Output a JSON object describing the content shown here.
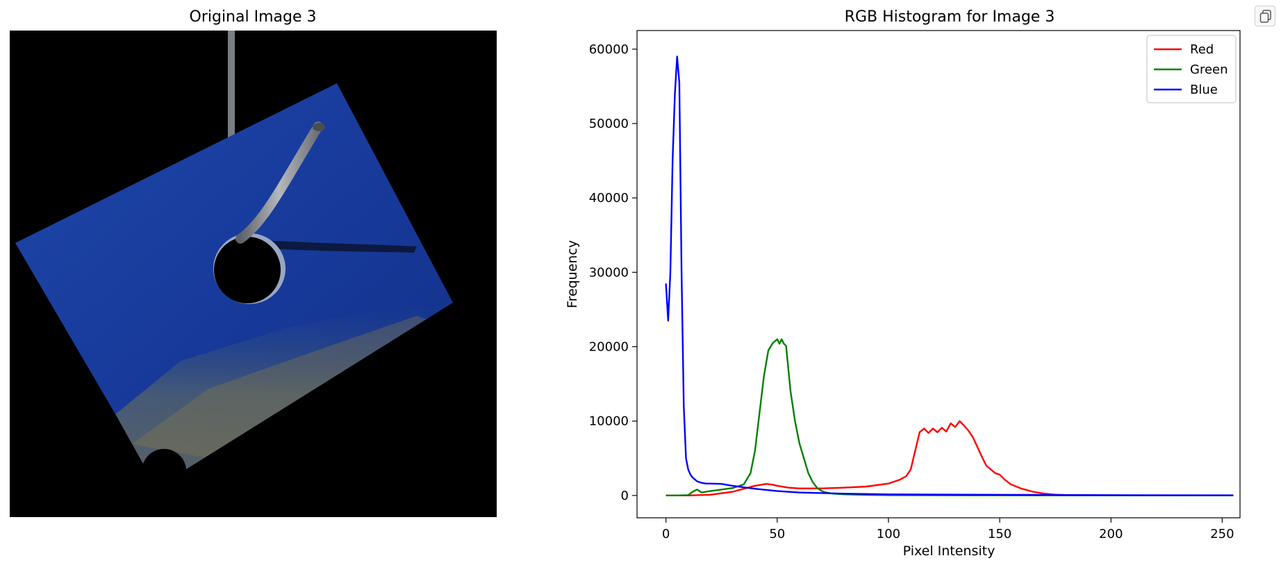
{
  "image_panel": {
    "title": "Original Image 3"
  },
  "chart_data": {
    "type": "line",
    "title": "RGB Histogram for Image 3",
    "xlabel": "Pixel Intensity",
    "ylabel": "Frequency",
    "xlim": [
      -13,
      258
    ],
    "ylim": [
      -3000,
      62500
    ],
    "xticks": [
      0,
      50,
      100,
      150,
      200,
      250
    ],
    "yticks": [
      0,
      10000,
      20000,
      30000,
      40000,
      50000,
      60000
    ],
    "legend_position": "top-right",
    "grid": false,
    "series": [
      {
        "name": "Red",
        "color": "#ff0000",
        "x": [
          0,
          10,
          20,
          30,
          35,
          40,
          45,
          48,
          50,
          55,
          60,
          70,
          80,
          90,
          100,
          105,
          108,
          110,
          112,
          114,
          116,
          118,
          120,
          122,
          124,
          126,
          128,
          130,
          132,
          134,
          136,
          138,
          140,
          142,
          144,
          146,
          148,
          150,
          152,
          155,
          160,
          165,
          170,
          175,
          180,
          190,
          200,
          220,
          240,
          255
        ],
        "values": [
          0,
          0,
          100,
          500,
          900,
          1300,
          1550,
          1450,
          1300,
          1050,
          950,
          950,
          1050,
          1200,
          1600,
          2100,
          2600,
          3500,
          6000,
          8500,
          9000,
          8400,
          9000,
          8500,
          9100,
          8600,
          9700,
          9200,
          10000,
          9400,
          8700,
          7800,
          6500,
          5200,
          4000,
          3500,
          3000,
          2800,
          2200,
          1500,
          900,
          500,
          250,
          120,
          60,
          20,
          10,
          5,
          0,
          0
        ]
      },
      {
        "name": "Green",
        "color": "#008000",
        "x": [
          0,
          5,
          10,
          12,
          14,
          16,
          20,
          25,
          30,
          35,
          38,
          40,
          42,
          44,
          46,
          48,
          50,
          51,
          52,
          53,
          54,
          55,
          56,
          58,
          60,
          62,
          64,
          66,
          68,
          70,
          72,
          75,
          80,
          90,
          100,
          120,
          150,
          200,
          255
        ],
        "values": [
          0,
          0,
          50,
          500,
          800,
          400,
          600,
          800,
          1000,
          1500,
          3000,
          6000,
          11000,
          16000,
          19500,
          20500,
          21000,
          20400,
          21000,
          20400,
          20100,
          17000,
          14000,
          10000,
          7000,
          5000,
          3000,
          1800,
          1000,
          600,
          400,
          250,
          150,
          80,
          40,
          20,
          10,
          5,
          0
        ]
      },
      {
        "name": "Blue",
        "color": "#0000ff",
        "x": [
          0,
          1,
          2,
          3,
          4,
          5,
          6,
          7,
          8,
          9,
          10,
          11,
          12,
          14,
          16,
          18,
          20,
          25,
          30,
          35,
          40,
          50,
          60,
          80,
          100,
          150,
          200,
          255
        ],
        "values": [
          28500,
          23500,
          30000,
          45000,
          54000,
          59000,
          55500,
          30000,
          12000,
          5000,
          3500,
          2800,
          2400,
          1900,
          1700,
          1600,
          1600,
          1550,
          1300,
          1100,
          900,
          600,
          400,
          250,
          150,
          100,
          50,
          20
        ]
      }
    ]
  }
}
